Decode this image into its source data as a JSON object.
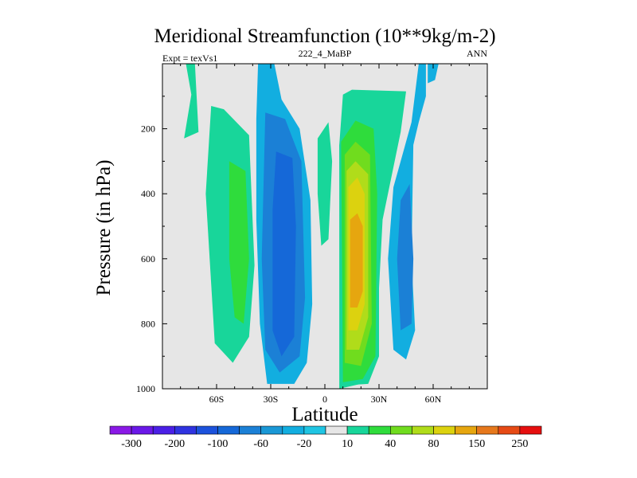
{
  "chart_data": {
    "type": "heatmap",
    "title": "Meridional Streamfunction (10**9kg/m-2)",
    "subtitle_left": "Expt = texVs1",
    "subtitle_center": "222_4_MaBP",
    "subtitle_right": "ANN",
    "xlabel": "Latitude",
    "ylabel": "Pressure (in hPa)",
    "xlim": [
      -90,
      90
    ],
    "ylim": [
      0,
      1000
    ],
    "y_inverted": true,
    "x_ticks": [
      {
        "value": -60,
        "label": "60S"
      },
      {
        "value": -30,
        "label": "30S"
      },
      {
        "value": 0,
        "label": "0"
      },
      {
        "value": 30,
        "label": "30N"
      },
      {
        "value": 60,
        "label": "60N"
      }
    ],
    "y_ticks": [
      {
        "value": 200,
        "label": "200"
      },
      {
        "value": 400,
        "label": "400"
      },
      {
        "value": 600,
        "label": "600"
      },
      {
        "value": 800,
        "label": "800"
      },
      {
        "value": 1000,
        "label": "1000"
      }
    ],
    "background_color": "#e6e6e6",
    "colorbar": {
      "levels": [
        -300,
        -250,
        -200,
        -150,
        -100,
        -80,
        -60,
        -40,
        -20,
        -10,
        10,
        20,
        40,
        60,
        80,
        100,
        150,
        200,
        250
      ],
      "colors": [
        "#8a19e6",
        "#6a18e8",
        "#4a1fe6",
        "#2f33e0",
        "#1c52dc",
        "#1568d8",
        "#1b80d6",
        "#1a98d6",
        "#12aee0",
        "#1fc5e3",
        "#e6e6e6",
        "#18d69a",
        "#2fdc3c",
        "#70dc1e",
        "#b0dc1a",
        "#dcd20f",
        "#e6a60f",
        "#e6781c",
        "#e64a15",
        "#e60f0f"
      ],
      "labels": [
        {
          "level": -300,
          "label": "-300"
        },
        {
          "level": -200,
          "label": "-200"
        },
        {
          "level": -100,
          "label": "-100"
        },
        {
          "level": -60,
          "label": "-60"
        },
        {
          "level": -20,
          "label": "-20"
        },
        {
          "level": 10,
          "label": "10"
        },
        {
          "level": 40,
          "label": "40"
        },
        {
          "level": 80,
          "label": "80"
        },
        {
          "level": 150,
          "label": "150"
        },
        {
          "level": 250,
          "label": "250"
        }
      ]
    },
    "contour_regions": [
      {
        "name": "nh-upper-strip-10-20",
        "value": 15,
        "color": "#18d69a",
        "points": [
          [
            8,
            1000
          ],
          [
            8,
            250
          ],
          [
            10,
            95
          ],
          [
            15,
            80
          ],
          [
            45,
            85
          ],
          [
            42,
            210
          ],
          [
            32,
            480
          ],
          [
            28,
            900
          ],
          [
            24,
            980
          ]
        ]
      },
      {
        "name": "sh-far-strip-10-20",
        "value": 15,
        "color": "#18d69a",
        "points": [
          [
            -77,
            0
          ],
          [
            -72,
            0
          ],
          [
            -70,
            210
          ],
          [
            -78,
            230
          ],
          [
            -74,
            95
          ]
        ]
      },
      {
        "name": "sh-lower-strip-10-20",
        "value": 15,
        "color": "#18d69a",
        "points": [
          [
            -63,
            130
          ],
          [
            -56,
            140
          ],
          [
            -42,
            220
          ],
          [
            -39,
            620
          ],
          [
            -42,
            840
          ],
          [
            -51,
            920
          ],
          [
            -61,
            860
          ],
          [
            -66,
            400
          ]
        ]
      },
      {
        "name": "sh-lower-strip-20-40",
        "value": 30,
        "color": "#2fdc3c",
        "points": [
          [
            -53,
            300
          ],
          [
            -44,
            330
          ],
          [
            -42,
            600
          ],
          [
            -45,
            800
          ],
          [
            -50,
            780
          ],
          [
            -53,
            600
          ]
        ]
      },
      {
        "name": "eq-small-strip-10-20",
        "value": 15,
        "color": "#18d69a",
        "points": [
          [
            -4,
            230
          ],
          [
            2,
            180
          ],
          [
            4,
            300
          ],
          [
            2,
            540
          ],
          [
            -2,
            560
          ],
          [
            -4,
            400
          ]
        ]
      },
      {
        "name": "sh-cell-minus-10-20",
        "value": -15,
        "color": "#12aee0",
        "points": [
          [
            -37,
            0
          ],
          [
            -28,
            0
          ],
          [
            -24,
            110
          ],
          [
            -14,
            200
          ],
          [
            -8,
            420
          ],
          [
            -7,
            740
          ],
          [
            -10,
            920
          ],
          [
            -17,
            985
          ],
          [
            -32,
            985
          ],
          [
            -36,
            800
          ],
          [
            -38,
            480
          ],
          [
            -38,
            170
          ]
        ]
      },
      {
        "name": "sh-cell-minus-20-40",
        "value": -30,
        "color": "#1b80d6",
        "points": [
          [
            -33,
            150
          ],
          [
            -22,
            170
          ],
          [
            -13,
            300
          ],
          [
            -11,
            720
          ],
          [
            -14,
            900
          ],
          [
            -25,
            950
          ],
          [
            -33,
            880
          ],
          [
            -35,
            600
          ]
        ]
      },
      {
        "name": "sh-cell-minus-40-60",
        "value": -50,
        "color": "#1568d8",
        "points": [
          [
            -27,
            270
          ],
          [
            -18,
            290
          ],
          [
            -16,
            500
          ],
          [
            -17,
            840
          ],
          [
            -24,
            900
          ],
          [
            -29,
            820
          ],
          [
            -29,
            450
          ]
        ]
      },
      {
        "name": "nh-cell-10-20",
        "value": 15,
        "color": "#18d69a",
        "points": [
          [
            9,
            990
          ],
          [
            8,
            250
          ],
          [
            14,
            170
          ],
          [
            24,
            120
          ],
          [
            32,
            130
          ],
          [
            32,
            280
          ],
          [
            30,
            520
          ],
          [
            30,
            900
          ],
          [
            24,
            985
          ]
        ]
      },
      {
        "name": "nh-cell-20-40",
        "value": 30,
        "color": "#2fdc3c",
        "points": [
          [
            10,
            980
          ],
          [
            9,
            240
          ],
          [
            17,
            175
          ],
          [
            27,
            200
          ],
          [
            29,
            400
          ],
          [
            28,
            900
          ],
          [
            21,
            970
          ]
        ]
      },
      {
        "name": "nh-cell-40-60",
        "value": 50,
        "color": "#70dc1e",
        "points": [
          [
            11,
            920
          ],
          [
            11,
            280
          ],
          [
            17,
            240
          ],
          [
            25,
            280
          ],
          [
            26,
            800
          ],
          [
            20,
            930
          ]
        ]
      },
      {
        "name": "nh-cell-60-80",
        "value": 70,
        "color": "#b0dc1a",
        "points": [
          [
            12,
            880
          ],
          [
            12,
            330
          ],
          [
            17,
            300
          ],
          [
            24,
            340
          ],
          [
            24,
            780
          ],
          [
            19,
            880
          ]
        ]
      },
      {
        "name": "nh-cell-80-100",
        "value": 90,
        "color": "#dcd20f",
        "points": [
          [
            13,
            820
          ],
          [
            13,
            380
          ],
          [
            18,
            350
          ],
          [
            22,
            400
          ],
          [
            22,
            740
          ],
          [
            18,
            820
          ]
        ]
      },
      {
        "name": "nh-cell-100-150",
        "value": 120,
        "color": "#e6a60f",
        "points": [
          [
            14,
            750
          ],
          [
            14,
            480
          ],
          [
            18,
            460
          ],
          [
            21,
            500
          ],
          [
            21,
            700
          ],
          [
            18,
            750
          ]
        ]
      },
      {
        "name": "nh-far-minus-10-20",
        "value": -15,
        "color": "#12aee0",
        "points": [
          [
            52,
            0
          ],
          [
            56,
            0
          ],
          [
            56,
            100
          ],
          [
            52,
            180
          ],
          [
            49,
            250
          ],
          [
            48,
            600
          ],
          [
            50,
            820
          ],
          [
            45,
            910
          ],
          [
            38,
            880
          ],
          [
            35,
            600
          ],
          [
            38,
            380
          ],
          [
            48,
            180
          ]
        ]
      },
      {
        "name": "nh-far-minus-20-40",
        "value": -30,
        "color": "#1b80d6",
        "points": [
          [
            42,
            420
          ],
          [
            47,
            370
          ],
          [
            49,
            600
          ],
          [
            48,
            800
          ],
          [
            42,
            820
          ],
          [
            40,
            600
          ]
        ]
      },
      {
        "name": "nh-top-right-minus-10-20",
        "value": -15,
        "color": "#12aee0",
        "points": [
          [
            57,
            0
          ],
          [
            63,
            0
          ],
          [
            61,
            50
          ],
          [
            57,
            60
          ]
        ]
      }
    ]
  }
}
